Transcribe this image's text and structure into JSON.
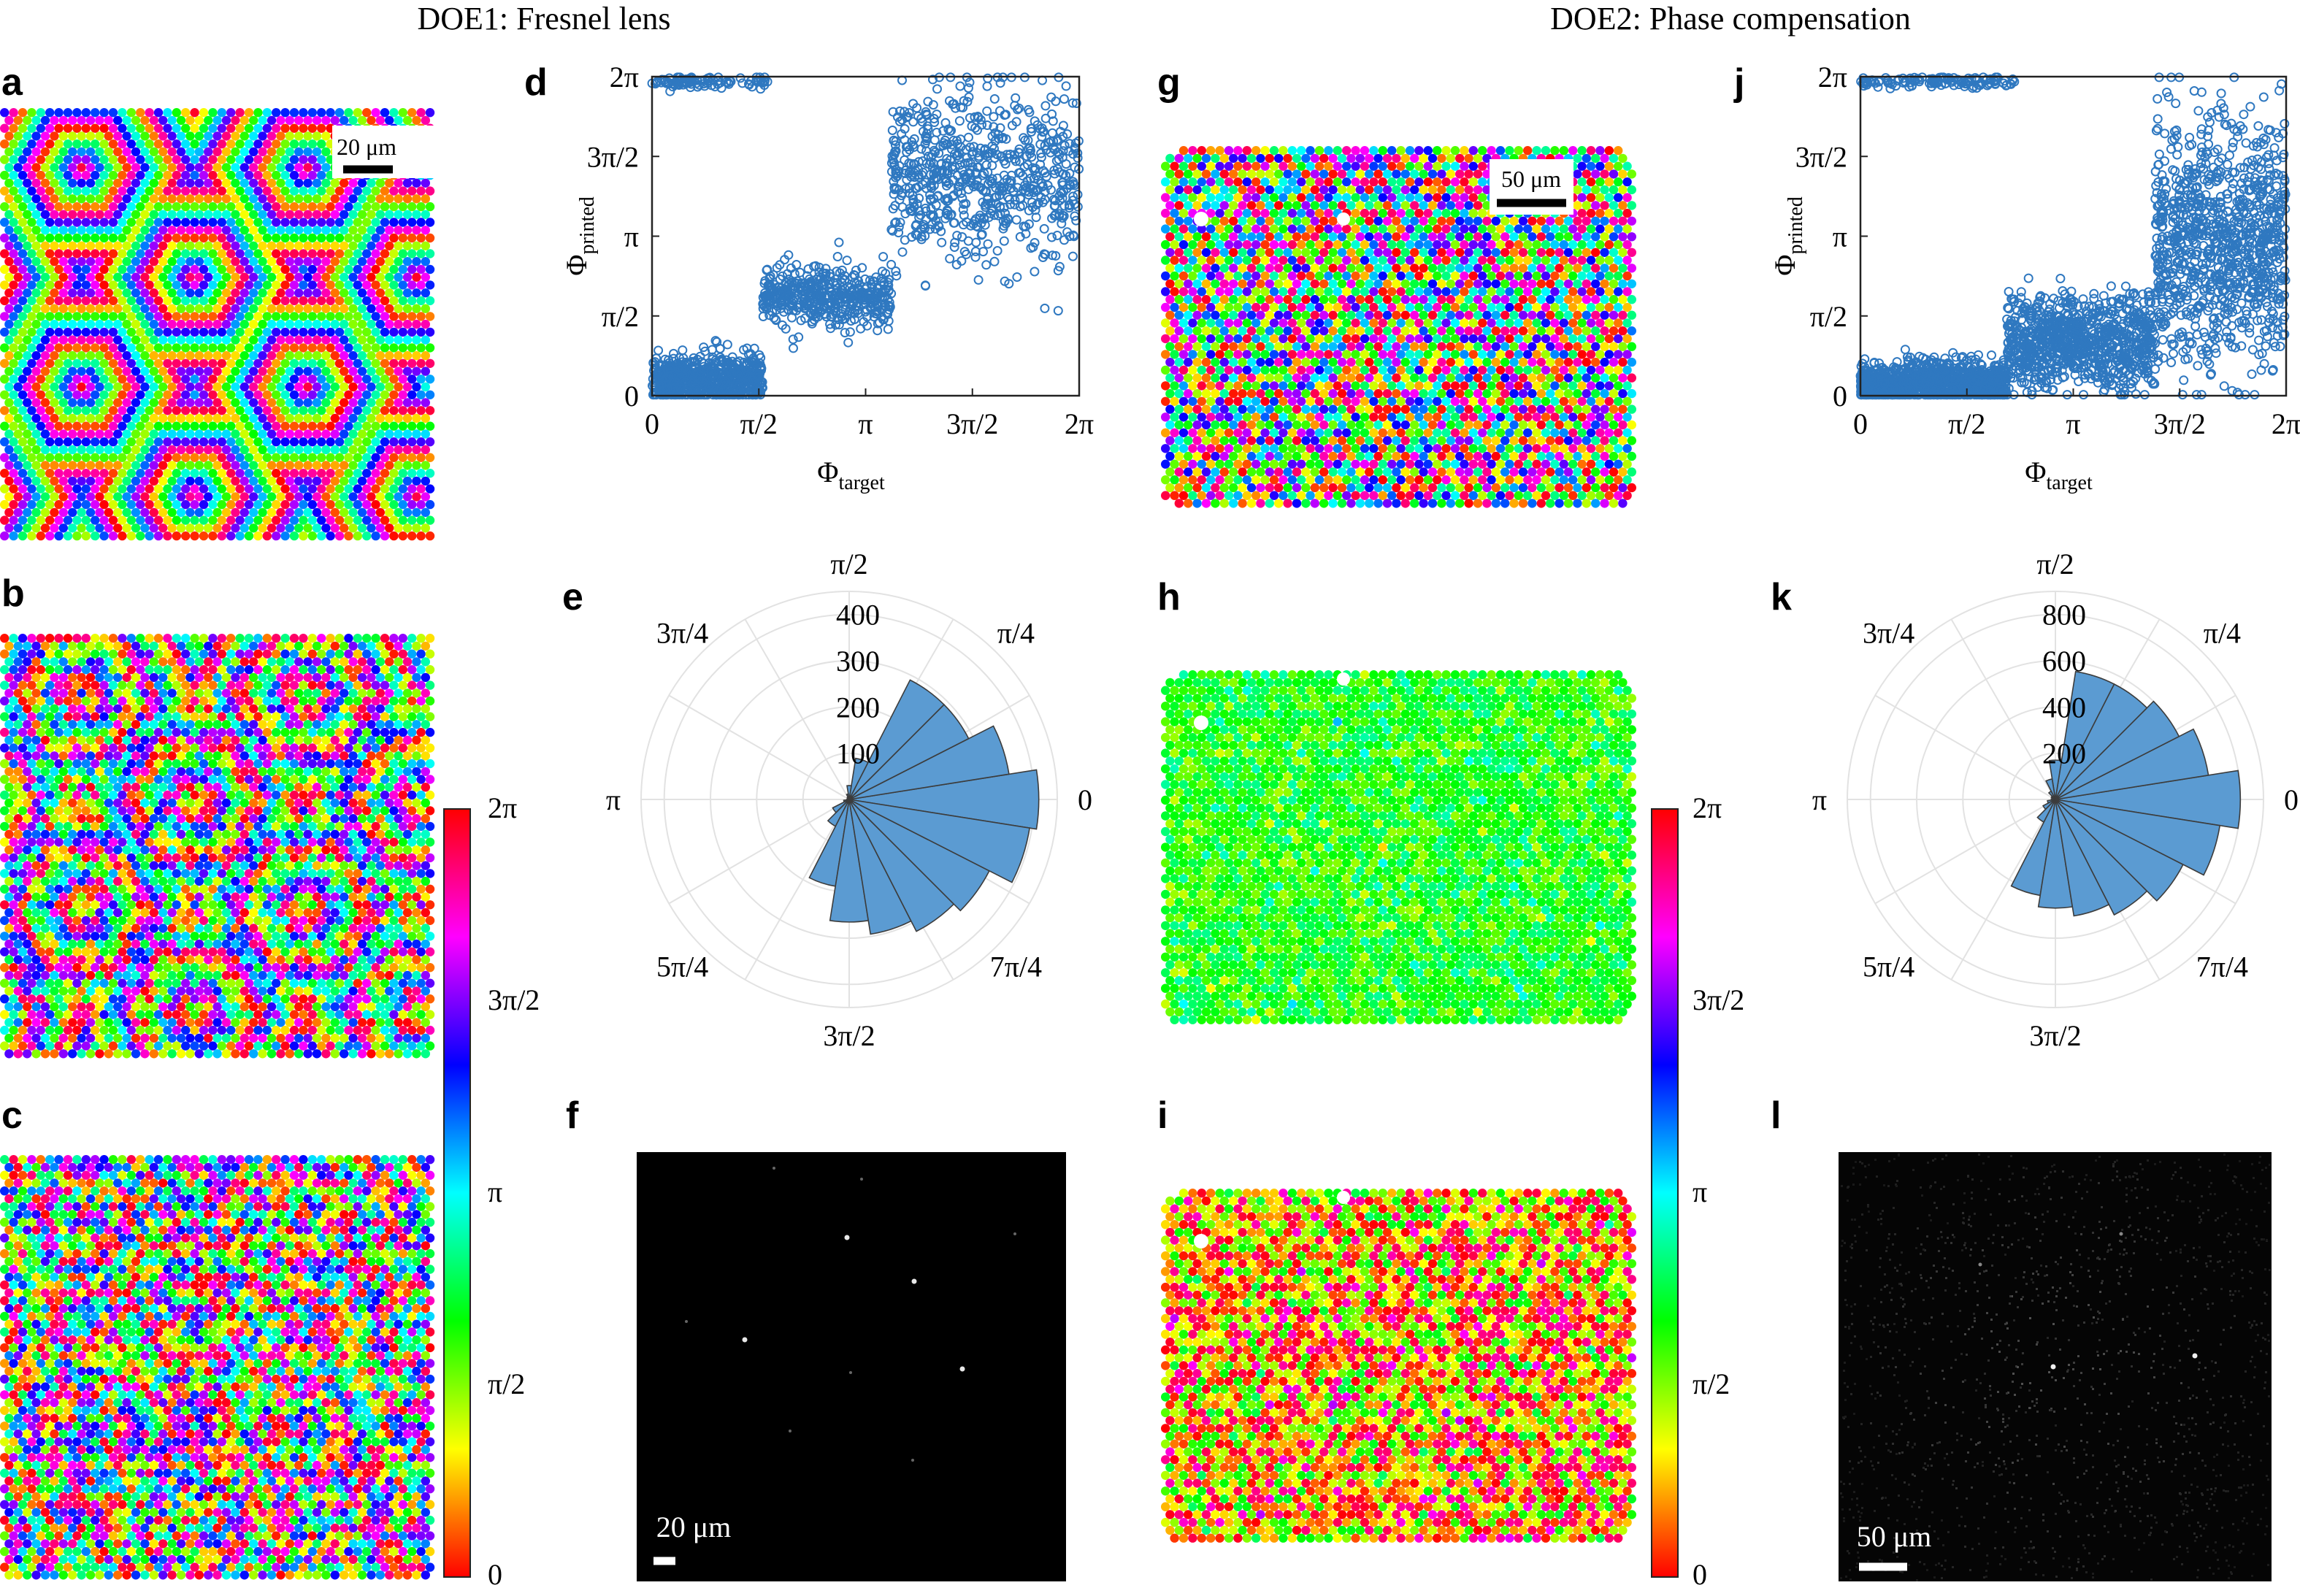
{
  "titles": {
    "doe1": "DOE1: Fresnel lens",
    "doe2": "DOE2: Phase compensation"
  },
  "panel_labels": [
    "a",
    "b",
    "c",
    "d",
    "e",
    "f",
    "g",
    "h",
    "i",
    "j",
    "k",
    "l"
  ],
  "scalebars": {
    "a": "20 μm",
    "f": "20 μm",
    "g": "50 μm",
    "l": "50 μm"
  },
  "colorbar_ticks": [
    "2π",
    "3π/2",
    "π",
    "π/2",
    "0"
  ],
  "colors": {
    "scatter": "#2f78c0",
    "polar_bar": "#5b9bd2",
    "axes": "#222222",
    "background": "#ffffff",
    "micrograph": "#000000"
  },
  "chart_data": [
    {
      "id": "d",
      "type": "scatter",
      "xlabel_main": "Φ",
      "xlabel_sub": "target",
      "ylabel_main": "Φ",
      "ylabel_sub": "printed",
      "xticks": [
        "0",
        "π/2",
        "π",
        "3π/2",
        "2π"
      ],
      "yticks": [
        "0",
        "π/2",
        "π",
        "3π/2",
        "2π"
      ],
      "xlim": [
        0,
        6.2832
      ],
      "ylim": [
        0,
        6.2832
      ],
      "grid": false,
      "clusters": [
        {
          "x_range": [
            0,
            1.63
          ],
          "y_center": 0.3,
          "y_spread": 0.25,
          "count": 650
        },
        {
          "x_range": [
            1.63,
            3.52
          ],
          "y_center": 1.95,
          "y_spread": 0.3,
          "count": 450
        },
        {
          "x_range": [
            3.52,
            6.28
          ],
          "y_center": 4.3,
          "y_spread": 0.85,
          "count": 700
        },
        {
          "x_range": [
            0,
            1.7
          ],
          "y_center": 6.18,
          "y_spread": 0.06,
          "count": 90
        }
      ]
    },
    {
      "id": "e",
      "type": "bar",
      "polar": true,
      "angle_labels": [
        "0",
        "π/4",
        "π/2",
        "3π/4",
        "π",
        "5π/4",
        "3π/2",
        "7π/4"
      ],
      "radial_ticks": [
        "100",
        "200",
        "300",
        "400"
      ],
      "rmax": 450,
      "bin_count": 20,
      "counts": [
        410,
        350,
        290,
        290,
        90,
        30,
        12,
        6,
        4,
        3,
        5,
        12,
        40,
        65,
        190,
        265,
        295,
        320,
        340,
        395
      ]
    },
    {
      "id": "j",
      "type": "scatter",
      "xlabel_main": "Φ",
      "xlabel_sub": "target",
      "ylabel_main": "Φ",
      "ylabel_sub": "printed",
      "xticks": [
        "0",
        "π/2",
        "π",
        "3π/2",
        "2π"
      ],
      "yticks": [
        "0",
        "π/2",
        "π",
        "3π/2",
        "2π"
      ],
      "xlim": [
        0,
        6.2832
      ],
      "ylim": [
        0,
        6.2832
      ],
      "grid": false,
      "clusters": [
        {
          "x_range": [
            0,
            2.15
          ],
          "y_center": 0.25,
          "y_spread": 0.2,
          "count": 1100
        },
        {
          "x_range": [
            2.15,
            4.35
          ],
          "y_center": 1.05,
          "y_spread": 0.45,
          "count": 900
        },
        {
          "x_range": [
            4.35,
            6.28
          ],
          "y_center": 3.0,
          "y_spread": 1.2,
          "count": 1000
        },
        {
          "x_range": [
            0,
            2.3
          ],
          "y_center": 6.18,
          "y_spread": 0.06,
          "count": 120
        }
      ]
    },
    {
      "id": "k",
      "type": "bar",
      "polar": true,
      "angle_labels": [
        "0",
        "π/4",
        "π/2",
        "3π/4",
        "π",
        "5π/4",
        "3π/2",
        "7π/4"
      ],
      "radial_ticks": [
        "200",
        "400",
        "600",
        "800"
      ],
      "rmax": 900,
      "bin_count": 20,
      "counts": [
        800,
        670,
        600,
        560,
        560,
        170,
        90,
        40,
        20,
        12,
        18,
        35,
        60,
        110,
        420,
        470,
        510,
        560,
        620,
        720
      ]
    }
  ],
  "phase_maps": {
    "a": {
      "pattern": "hexagonal rings",
      "phase_offset": 0.0,
      "noise": 0.05
    },
    "b": {
      "pattern": "hexagonal rings",
      "phase_offset": 2.2,
      "noise": 0.9
    },
    "c": {
      "pattern": "hexagonal rings",
      "phase_offset": 5.6,
      "noise": 1.4
    },
    "g": {
      "pattern": "random",
      "phase_offset": 0.0,
      "noise": 3.14
    },
    "h": {
      "pattern": "random",
      "phase_offset": 2.1,
      "noise": 0.6
    },
    "i": {
      "pattern": "random",
      "phase_offset": 0.7,
      "noise": 1.6
    }
  }
}
